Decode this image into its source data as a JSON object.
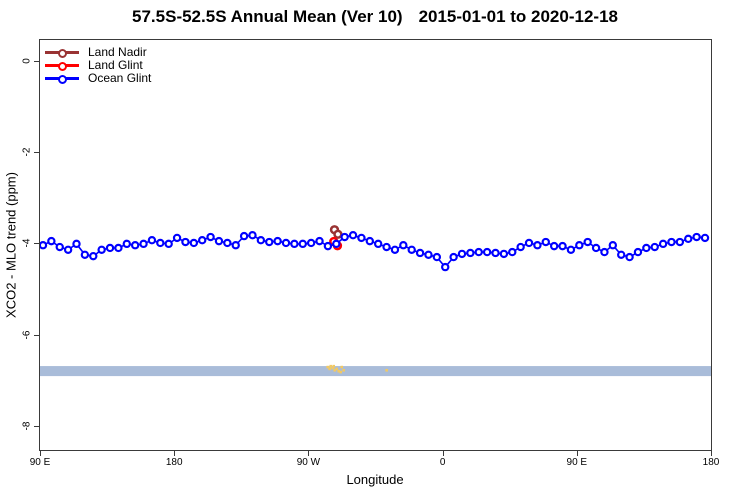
{
  "title": {
    "main": "57.5S-52.5S Annual Mean (Ver 10)",
    "dates": "2015-01-01 to 2020-12-18"
  },
  "chart_data": {
    "type": "line",
    "title": "57.5S-52.5S Annual Mean (Ver 10)  2015-01-01 to 2020-12-18",
    "xlabel": "Longitude",
    "ylabel": "XCO2 - MLO trend (ppm)",
    "axis_note": "x axis spans 450 degrees of longitude starting at 90E wrapping eastward; axis_deg = degrees east of 90E",
    "axis_deg_span": 450,
    "ylim": [
      -8.55,
      0.48
    ],
    "grid": false,
    "legend_position": "top-left",
    "x_ticks": [
      {
        "deg": 0,
        "label": "90 E"
      },
      {
        "deg": 90,
        "label": "180"
      },
      {
        "deg": 180,
        "label": "90 W"
      },
      {
        "deg": 270,
        "label": "0"
      },
      {
        "deg": 360,
        "label": "90 E"
      },
      {
        "deg": 450,
        "label": "180"
      }
    ],
    "y_ticks": [
      {
        "ppm": 0,
        "label": "0"
      },
      {
        "ppm": -2,
        "label": "-2"
      },
      {
        "ppm": -4,
        "label": "-4"
      },
      {
        "ppm": -6,
        "label": "-6"
      },
      {
        "ppm": -8,
        "label": "-8"
      }
    ],
    "legend": [
      {
        "label": "Land Nadir",
        "color": "#993333"
      },
      {
        "label": "Land Glint",
        "color": "#ff0000"
      },
      {
        "label": "Ocean Glint",
        "color": "#0000ff"
      }
    ],
    "series": [
      {
        "name": "Land Nadir",
        "color": "#993333",
        "marker": "open-circle",
        "points": [
          [
            197.5,
            -3.7
          ],
          [
            199.8,
            -3.8
          ]
        ]
      },
      {
        "name": "Land Glint",
        "color": "#ff0000",
        "marker": "open-circle",
        "points": [
          [
            197.0,
            -3.96
          ],
          [
            199.5,
            -4.05
          ]
        ]
      },
      {
        "name": "Ocean Glint",
        "color": "#0000ff",
        "marker": "open-circle",
        "deg_start": 2.0,
        "deg_step": 5.62,
        "ppm": [
          -4.04,
          -3.95,
          -4.08,
          -4.14,
          -4.01,
          -4.25,
          -4.28,
          -4.14,
          -4.1,
          -4.1,
          -4.01,
          -4.04,
          -4.01,
          -3.93,
          -3.99,
          -4.01,
          -3.88,
          -3.97,
          -3.99,
          -3.93,
          -3.86,
          -3.95,
          -3.99,
          -4.04,
          -3.84,
          -3.82,
          -3.93,
          -3.97,
          -3.95,
          -3.99,
          -4.01,
          -4.01,
          -3.99,
          -3.95,
          -4.06,
          -4.01,
          -3.86,
          -3.82,
          -3.88,
          -3.95,
          -4.01,
          -4.08,
          -4.14,
          -4.04,
          -4.14,
          -4.21,
          -4.25,
          -4.3,
          -4.52,
          -4.3,
          -4.23,
          -4.21,
          -4.19,
          -4.19,
          -4.21,
          -4.23,
          -4.19,
          -4.08,
          -3.99,
          -4.04,
          -3.97,
          -4.06,
          -4.06,
          -4.14,
          -4.04,
          -3.97,
          -4.1,
          -4.19,
          -4.04,
          -4.25,
          -4.3,
          -4.19,
          -4.1,
          -4.08,
          -4.01,
          -3.97,
          -3.97,
          -3.9,
          -3.86,
          -3.88
        ]
      }
    ],
    "band": {
      "color": "#a9bcd9",
      "ppm_top": -6.69,
      "ppm_bottom": -6.91,
      "full_width": true
    },
    "band_specks": {
      "color": "#f2c963",
      "points": [
        [
          192.9,
          -6.71
        ],
        [
          194.2,
          -6.75
        ],
        [
          194.9,
          -6.69
        ],
        [
          196.2,
          -6.73
        ],
        [
          196.9,
          -6.69
        ],
        [
          197.6,
          -6.78
        ],
        [
          198.9,
          -6.75
        ],
        [
          200.3,
          -6.8
        ],
        [
          201.6,
          -6.82
        ],
        [
          202.3,
          -6.71
        ],
        [
          203.6,
          -6.78
        ],
        [
          232.4,
          -6.78
        ]
      ]
    }
  }
}
